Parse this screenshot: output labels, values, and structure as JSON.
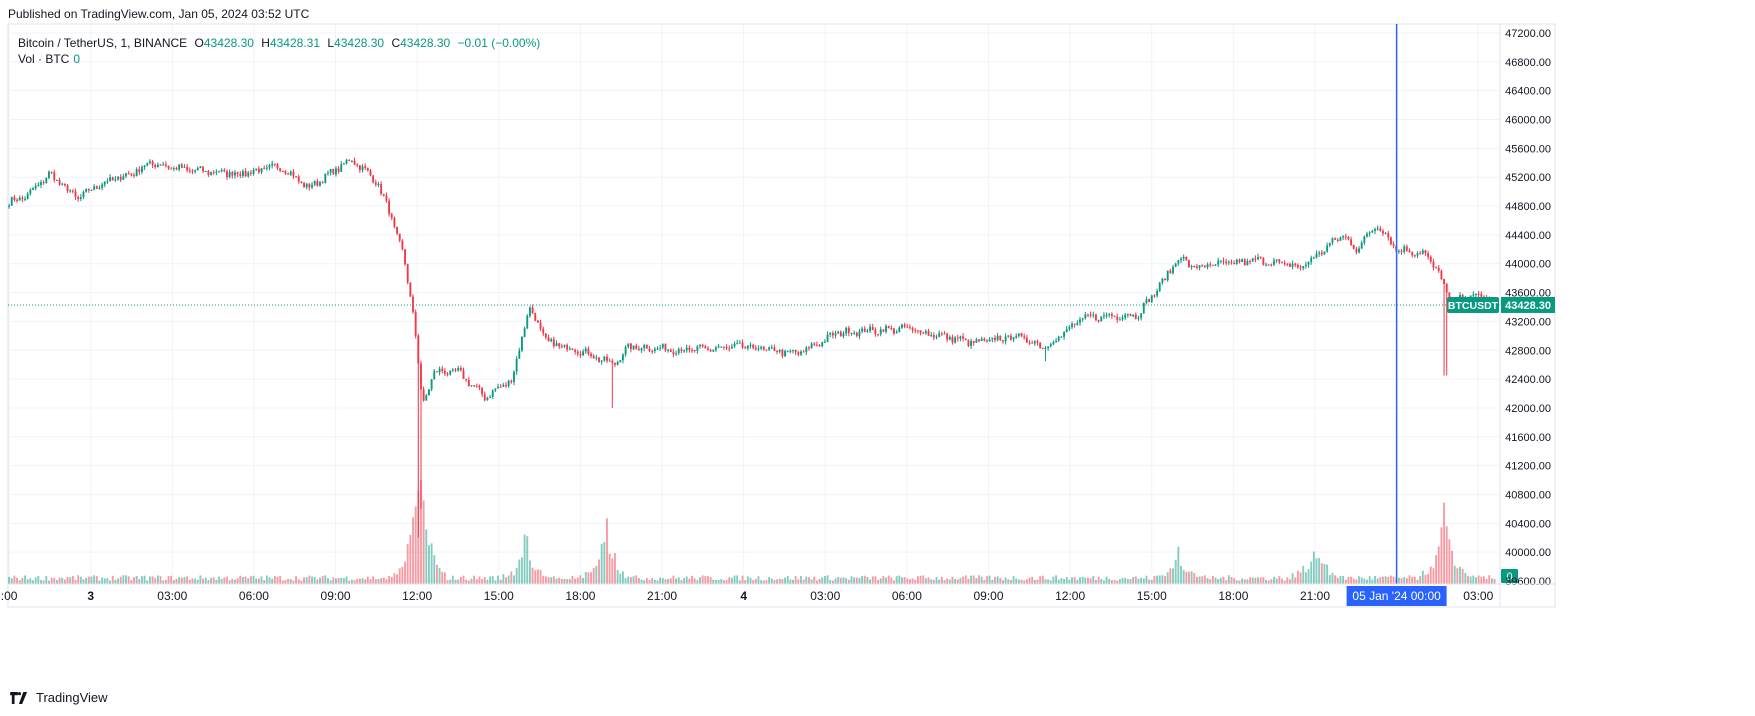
{
  "published": "Published on TradingView.com, Jan 05, 2024 03:52 UTC",
  "footer": {
    "brand": "TradingView"
  },
  "legend": {
    "symbol": "Bitcoin / TetherUS, 1, BINANCE",
    "o_label": "O",
    "o_value": "43428.30",
    "h_label": "H",
    "h_value": "43428.31",
    "l_label": "L",
    "l_value": "43428.30",
    "c_label": "C",
    "c_value": "43428.30",
    "change": "−0.01 (−0.00%)",
    "vol_label": "Vol · BTC",
    "vol_value": "0"
  },
  "colors": {
    "up": "#089981",
    "down": "#f23645",
    "crosshair": "#2962ff",
    "grid": "#f0f3fa",
    "price_line": "#089981",
    "text": "#131722"
  },
  "chart_data": {
    "type": "candlestick",
    "symbol": "BTCUSDT",
    "interval": "1",
    "exchange": "BINANCE",
    "y_axis": {
      "ticks": [
        "47200.00",
        "46800.00",
        "46400.00",
        "46000.00",
        "45600.00",
        "45200.00",
        "44800.00",
        "44400.00",
        "44000.00",
        "43600.00",
        "43200.00",
        "42800.00",
        "42400.00",
        "42000.00",
        "41600.00",
        "41200.00",
        "40800.00",
        "40400.00",
        "40000.00",
        "39600.00"
      ],
      "ylim": [
        39600,
        47200
      ],
      "ytick_values": [
        47200,
        46800,
        46400,
        46000,
        45600,
        45200,
        44800,
        44400,
        44000,
        43600,
        43200,
        42800,
        42400,
        42000,
        41600,
        41200,
        40800,
        40400,
        40000,
        39600
      ]
    },
    "x_axis": {
      "labels": [
        ":00",
        "3",
        "03:00",
        "06:00",
        "09:00",
        "12:00",
        "15:00",
        "18:00",
        "21:00",
        "4",
        "03:00",
        "06:00",
        "09:00",
        "12:00",
        "15:00",
        "18:00",
        "21:00",
        "03:00"
      ],
      "hours": [
        -3,
        0,
        3,
        6,
        9,
        12,
        15,
        18,
        21,
        24,
        27,
        30,
        33,
        36,
        39,
        42,
        45,
        51
      ],
      "xlim_hours": [
        -3.04,
        51.8
      ],
      "crosshair_label": "05 Jan '24   00:00",
      "crosshair_hour": 48
    },
    "last_price": {
      "symbol_label": "BTCUSDT",
      "value_label": "43428.30",
      "value": 43428.3
    },
    "volume_badge": "0",
    "keypoints": [
      {
        "t": -3.0,
        "p": 44850
      },
      {
        "t": -2.3,
        "p": 44950
      },
      {
        "t": -1.5,
        "p": 45250
      },
      {
        "t": -0.5,
        "p": 44900
      },
      {
        "t": 0.3,
        "p": 45100
      },
      {
        "t": 1.5,
        "p": 45250
      },
      {
        "t": 2.2,
        "p": 45400
      },
      {
        "t": 3.5,
        "p": 45300
      },
      {
        "t": 5.5,
        "p": 45250
      },
      {
        "t": 7.0,
        "p": 45350
      },
      {
        "t": 8.0,
        "p": 45050
      },
      {
        "t": 9.0,
        "p": 45300
      },
      {
        "t": 9.6,
        "p": 45450
      },
      {
        "t": 10.5,
        "p": 45150
      },
      {
        "t": 11.0,
        "p": 44700
      },
      {
        "t": 11.5,
        "p": 44100
      },
      {
        "t": 11.9,
        "p": 43200
      },
      {
        "t": 12.2,
        "p": 42000
      },
      {
        "t": 12.6,
        "p": 42500
      },
      {
        "t": 13.5,
        "p": 42500
      },
      {
        "t": 14.5,
        "p": 42150
      },
      {
        "t": 15.5,
        "p": 42400
      },
      {
        "t": 16.1,
        "p": 43400
      },
      {
        "t": 16.8,
        "p": 42900
      },
      {
        "t": 18.0,
        "p": 42800
      },
      {
        "t": 19.2,
        "p": 42600
      },
      {
        "t": 19.8,
        "p": 42850
      },
      {
        "t": 22.0,
        "p": 42800
      },
      {
        "t": 24.0,
        "p": 42850
      },
      {
        "t": 26.0,
        "p": 42750
      },
      {
        "t": 27.5,
        "p": 43050
      },
      {
        "t": 30.0,
        "p": 43100
      },
      {
        "t": 32.5,
        "p": 42900
      },
      {
        "t": 34.0,
        "p": 43000
      },
      {
        "t": 35.1,
        "p": 42850
      },
      {
        "t": 36.5,
        "p": 43250
      },
      {
        "t": 38.5,
        "p": 43300
      },
      {
        "t": 39.5,
        "p": 43800
      },
      {
        "t": 40.0,
        "p": 44100
      },
      {
        "t": 40.5,
        "p": 43950
      },
      {
        "t": 43.0,
        "p": 44050
      },
      {
        "t": 44.5,
        "p": 43950
      },
      {
        "t": 46.0,
        "p": 44400
      },
      {
        "t": 46.5,
        "p": 44200
      },
      {
        "t": 47.3,
        "p": 44550
      },
      {
        "t": 48.0,
        "p": 44200
      },
      {
        "t": 49.0,
        "p": 44150
      },
      {
        "t": 49.6,
        "p": 43850
      },
      {
        "t": 50.0,
        "p": 43400
      },
      {
        "t": 50.5,
        "p": 43550
      },
      {
        "t": 51.1,
        "p": 43550
      },
      {
        "t": 51.6,
        "p": 43428.3
      }
    ],
    "spikes": [
      {
        "t": 12.05,
        "low": 40200
      },
      {
        "t": 12.15,
        "low": 40600
      },
      {
        "t": 19.2,
        "low": 42000
      },
      {
        "t": 35.1,
        "low": 42650
      },
      {
        "t": 49.8,
        "low": 42450
      }
    ],
    "volume_peaks": [
      {
        "t": 12.0,
        "v": 0.7
      },
      {
        "t": 12.2,
        "v": 0.55
      },
      {
        "t": 16.0,
        "v": 0.4
      },
      {
        "t": 19.0,
        "v": 0.55
      },
      {
        "t": 40.0,
        "v": 0.3
      },
      {
        "t": 45.0,
        "v": 0.45
      },
      {
        "t": 49.8,
        "v": 0.7
      }
    ]
  }
}
